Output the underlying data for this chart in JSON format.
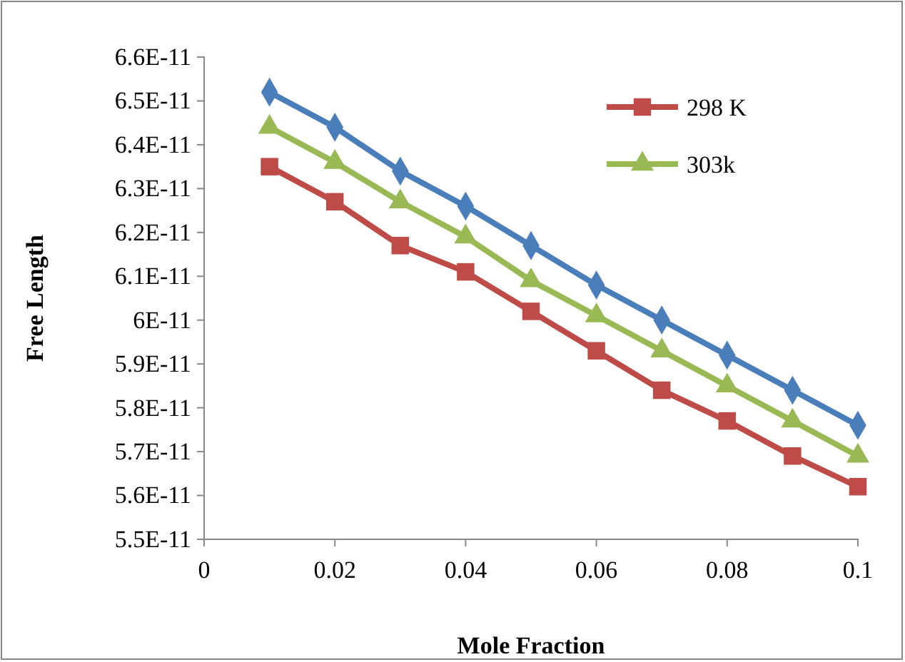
{
  "chart_data": {
    "type": "line",
    "xlabel": "Mole Fraction",
    "ylabel": "Free Length",
    "x": [
      0.01,
      0.02,
      0.03,
      0.04,
      0.05,
      0.06,
      0.07,
      0.08,
      0.09,
      0.1
    ],
    "series": [
      {
        "name": "298 K",
        "color": "#be4b48",
        "marker": "square",
        "values": [
          6.35e-11,
          6.27e-11,
          6.17e-11,
          6.11e-11,
          6.02e-11,
          5.93e-11,
          5.84e-11,
          5.77e-11,
          5.69e-11,
          5.62e-11
        ]
      },
      {
        "name": "303k",
        "color": "#98b954",
        "marker": "triangle",
        "values": [
          6.44e-11,
          6.36e-11,
          6.27e-11,
          6.19e-11,
          6.09e-11,
          6.01e-11,
          5.93e-11,
          5.85e-11,
          5.77e-11,
          5.69e-11
        ]
      },
      {
        "color": "#4a7ebb",
        "marker": "diamond",
        "values": [
          6.52e-11,
          6.44e-11,
          6.34e-11,
          6.26e-11,
          6.17e-11,
          6.08e-11,
          6e-11,
          5.92e-11,
          5.84e-11,
          5.76e-11
        ]
      }
    ],
    "xlim": [
      0,
      0.1
    ],
    "xticks": [
      0,
      0.02,
      0.04,
      0.06,
      0.08,
      0.1
    ],
    "ylim": [
      5.5e-11,
      6.6e-11
    ],
    "yticks": [
      {
        "value": 5.5e-11,
        "label": "5.5E-11"
      },
      {
        "value": 5.6e-11,
        "label": "5.6E-11"
      },
      {
        "value": 5.7e-11,
        "label": "5.7E-11"
      },
      {
        "value": 5.8e-11,
        "label": "5.8E-11"
      },
      {
        "value": 5.9e-11,
        "label": "5.9E-11"
      },
      {
        "value": 6e-11,
        "label": "6E-11"
      },
      {
        "value": 6.1e-11,
        "label": "6.1E-11"
      },
      {
        "value": 6.2e-11,
        "label": "6.2E-11"
      },
      {
        "value": 6.3e-11,
        "label": "6.3E-11"
      },
      {
        "value": 6.4e-11,
        "label": "6.4E-11"
      },
      {
        "value": 6.5e-11,
        "label": "6.5E-11"
      },
      {
        "value": 6.6e-11,
        "label": "6.6E-11"
      }
    ],
    "legend": "top right",
    "line_style": "solid"
  }
}
